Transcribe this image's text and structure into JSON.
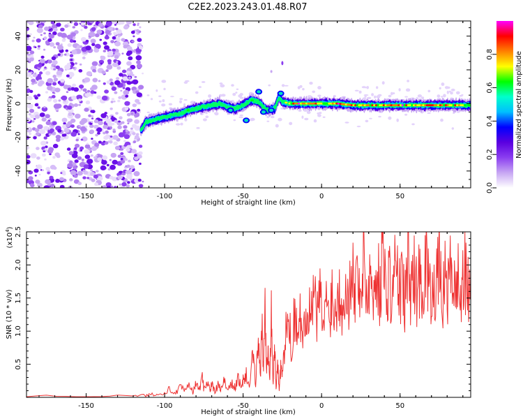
{
  "title": "C2E2.2023.243.01.48.R07",
  "chart_data": [
    {
      "type": "heatmap",
      "xlabel": "Height of straight line (km)",
      "ylabel": "Frequency (Hz)",
      "xlim": [
        -188,
        95
      ],
      "ylim": [
        -50,
        49
      ],
      "xticks": [
        -150,
        -100,
        -50,
        0,
        50
      ],
      "yticks": [
        -40,
        -20,
        0,
        20,
        40
      ],
      "noise_region_x": [
        -188,
        -115
      ],
      "ridge": {
        "x": [
          -115,
          -112,
          -108,
          -104,
          -100,
          -95,
          -90,
          -85,
          -80,
          -75,
          -70,
          -65,
          -60,
          -55,
          -50,
          -45,
          -40,
          -35,
          -30,
          -27,
          -25,
          -20,
          -15,
          -10,
          0,
          10,
          20,
          30,
          40,
          50,
          60,
          70,
          80,
          95
        ],
        "y": [
          -16,
          -11,
          -10,
          -9,
          -8,
          -7,
          -6,
          -4,
          -3,
          -2,
          -1,
          0,
          -2,
          -3,
          -1,
          2,
          1,
          -4,
          -3,
          4,
          1,
          0,
          0,
          0,
          0,
          0,
          -1,
          -1,
          -1,
          -1,
          -1,
          -1,
          -1,
          -1
        ],
        "amp": [
          0.3,
          0.55,
          0.5,
          0.5,
          0.55,
          0.55,
          0.6,
          0.6,
          0.55,
          0.55,
          0.6,
          0.55,
          0.5,
          0.5,
          0.55,
          0.6,
          0.5,
          0.55,
          0.5,
          0.6,
          0.6,
          0.75,
          0.9,
          0.9,
          0.85,
          0.9,
          0.85,
          0.8,
          0.85,
          0.9,
          0.85,
          0.9,
          0.85,
          0.8
        ]
      },
      "colorbar": {
        "label": "Normalized spectral amplitude",
        "ticks": [
          0.0,
          0.2,
          0.4,
          0.6,
          0.8
        ],
        "range": [
          0,
          1
        ],
        "colormap": [
          "#ffffff",
          "#c7a6f3",
          "#8b3ef0",
          "#5a00e0",
          "#0000ff",
          "#00bfff",
          "#00ffcc",
          "#00ff00",
          "#ffff00",
          "#ff8000",
          "#ff0000",
          "#ff00ff"
        ]
      }
    },
    {
      "type": "line",
      "xlabel": "Height of straight line (km)",
      "ylabel": "SNR (10 * v/v)",
      "y_multiplier": "(x10",
      "y_multiplier_exp": "4",
      "xlim": [
        -188,
        95
      ],
      "ylim": [
        0,
        2.5
      ],
      "xticks": [
        -150,
        -100,
        -50,
        0,
        50
      ],
      "yticks": [
        0.5,
        1.0,
        1.5,
        2.0,
        2.5
      ],
      "line_color": "#ee3333",
      "series": [
        {
          "x": [
            -188,
            -150,
            -120,
            -112,
            -108,
            -105,
            -100,
            -97,
            -93,
            -90,
            -87,
            -84,
            -82,
            -80,
            -78,
            -76,
            -75,
            -73,
            -71,
            -70,
            -68,
            -66,
            -64,
            -62,
            -60,
            -57,
            -55,
            -53,
            -51,
            -50,
            -48,
            -46,
            -44,
            -42,
            -40,
            -39,
            -38,
            -37,
            -36,
            -35,
            -34,
            -33,
            -32,
            -31,
            -30,
            -29,
            -28,
            -27,
            -26,
            -25,
            -23,
            -21,
            -19,
            -17,
            -15,
            -13,
            -11,
            -9,
            -7,
            -5,
            -3,
            -1,
            1,
            3,
            5,
            7,
            9,
            11,
            13,
            15,
            17,
            19,
            21,
            23,
            25,
            27,
            29,
            31,
            33,
            35,
            37,
            39,
            41,
            43,
            45,
            47,
            49,
            51,
            53,
            55,
            57,
            59,
            61,
            63,
            65,
            67,
            69,
            71,
            73,
            75,
            77,
            79,
            81,
            83,
            85,
            87,
            89,
            91,
            93,
            95
          ],
          "y": [
            0.02,
            0.02,
            0.02,
            0.03,
            0.05,
            0.04,
            0.08,
            0.12,
            0.06,
            0.15,
            0.1,
            0.18,
            0.08,
            0.2,
            0.12,
            0.3,
            0.12,
            0.25,
            0.1,
            0.2,
            0.08,
            0.18,
            0.12,
            0.25,
            0.1,
            0.2,
            0.15,
            0.3,
            0.12,
            0.25,
            0.35,
            0.15,
            0.6,
            0.25,
            0.9,
            0.3,
            1.1,
            0.4,
            1.4,
            0.5,
            0.9,
            0.3,
            1.2,
            0.2,
            0.8,
            0.15,
            0.6,
            0.1,
            0.5,
            0.3,
            0.9,
            1.2,
            0.7,
            1.4,
            0.9,
            1.3,
            1.0,
            1.5,
            1.1,
            1.6,
            1.2,
            1.5,
            1.1,
            1.4,
            1.3,
            1.6,
            1.2,
            1.7,
            1.4,
            1.8,
            1.3,
            2.2,
            1.5,
            1.9,
            1.6,
            2.1,
            1.5,
            1.9,
            1.4,
            2.0,
            1.6,
            2.3,
            1.5,
            1.9,
            1.4,
            2.2,
            1.5,
            1.8,
            1.4,
            2.1,
            1.6,
            1.9,
            1.5,
            2.0,
            1.6,
            2.2,
            1.5,
            1.9,
            1.6,
            2.0,
            1.5,
            1.8,
            1.6,
            2.1,
            1.5,
            1.8,
            1.6,
            1.9,
            1.6,
            1.7
          ]
        }
      ]
    }
  ]
}
